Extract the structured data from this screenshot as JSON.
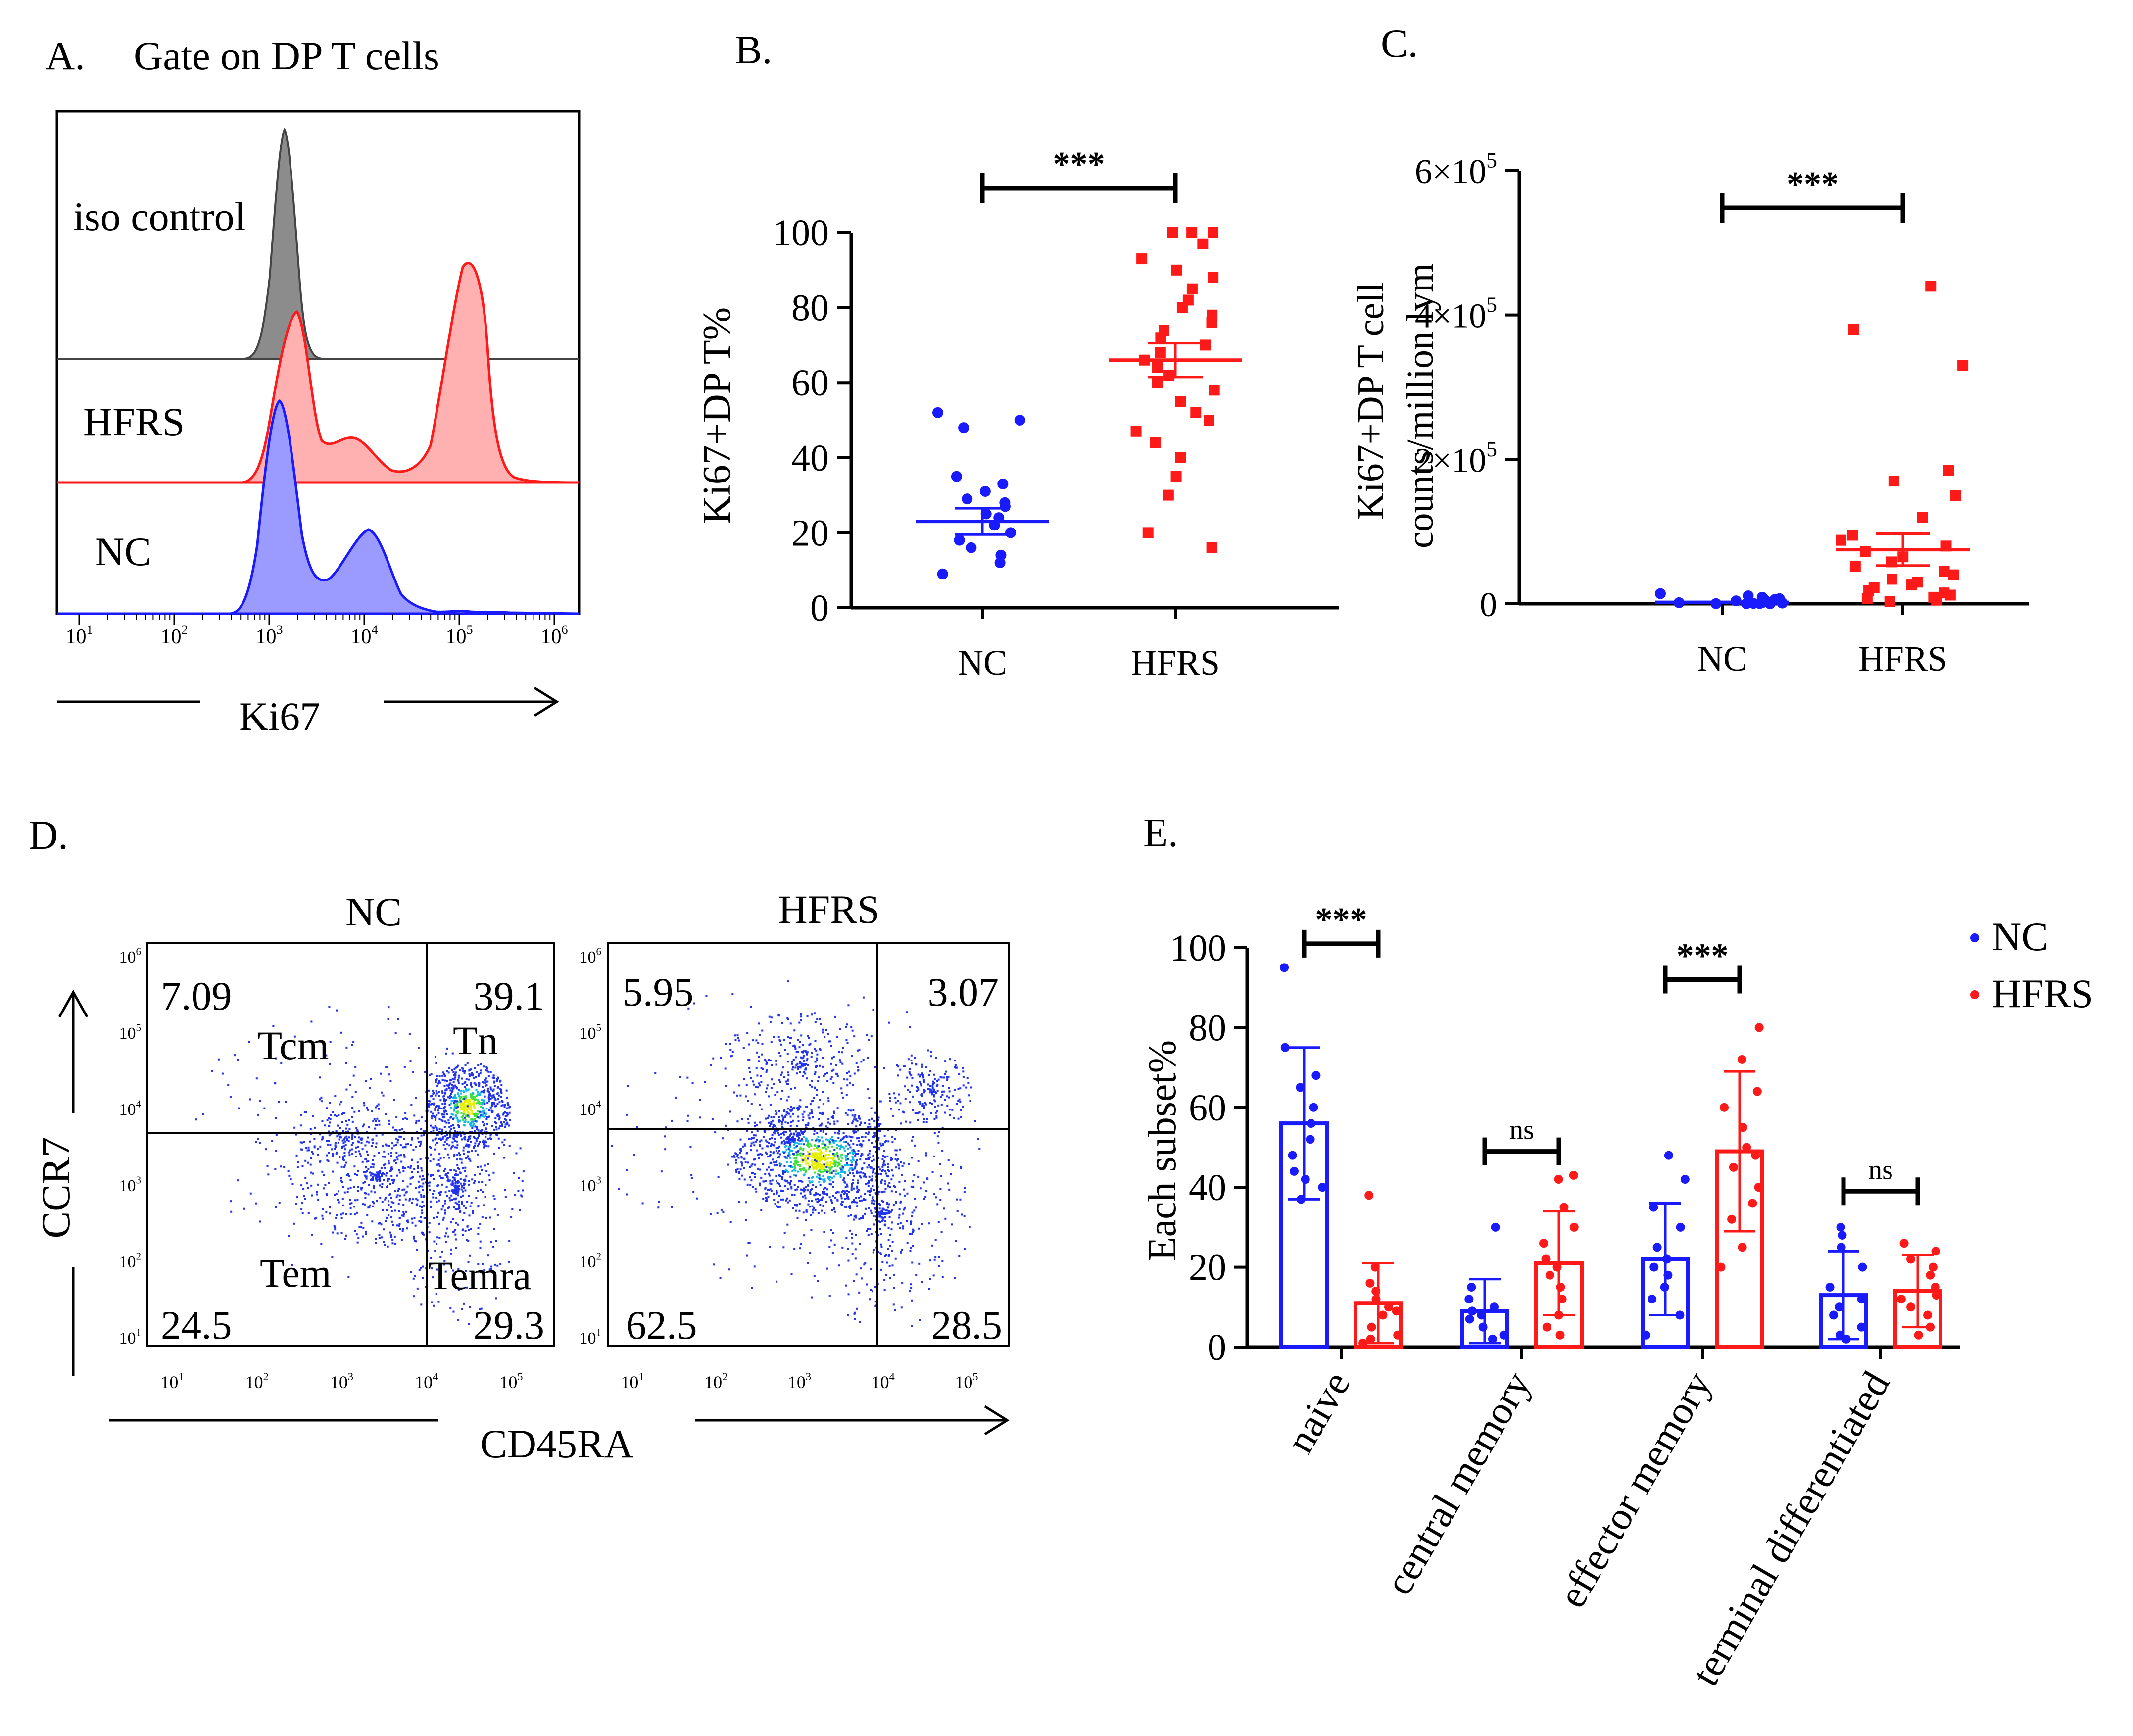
{
  "colors": {
    "nc": "#1a1aff",
    "hfrs": "#ff1a1a",
    "iso": "#555555",
    "axis": "#000000"
  },
  "chart_data": [
    {
      "panel": "A.",
      "type": "histogram",
      "title": "Gate on DP T cells",
      "xlabel": "Ki67",
      "x_ticks": [
        "10",
        "10",
        "10",
        "10",
        "10",
        "10"
      ],
      "x_tick_exponents": [
        "1",
        "2",
        "3",
        "4",
        "5",
        "6"
      ],
      "tracks": [
        "iso control",
        "HFRS",
        "NC"
      ],
      "track_peaks_log10": {
        "iso control": [
          3.4
        ],
        "HFRS": [
          3.5,
          4.1,
          5.4
        ],
        "NC": [
          3.3,
          4.3
        ]
      }
    },
    {
      "panel": "B.",
      "type": "scatter",
      "ylabel": "Ki67+DP T%",
      "ylim": [
        0,
        100
      ],
      "y_ticks": [
        "100",
        "80",
        "60",
        "40",
        "20",
        "0"
      ],
      "categories": [
        "NC",
        "HFRS"
      ],
      "significance": "***",
      "series": [
        {
          "name": "NC",
          "mean": 23,
          "sem": 3.5,
          "values": [
            52,
            50,
            48,
            35,
            33,
            31,
            29,
            28,
            27,
            25,
            24,
            22,
            20,
            18,
            16,
            14,
            12,
            9
          ]
        },
        {
          "name": "HFRS",
          "mean": 66,
          "sem": 4.5,
          "values": [
            100,
            100,
            100,
            97,
            93,
            90,
            88,
            85,
            82,
            80,
            78,
            76,
            74,
            72,
            70,
            68,
            66,
            64,
            62,
            60,
            58,
            55,
            52,
            50,
            47,
            44,
            40,
            35,
            30,
            20,
            16
          ]
        }
      ]
    },
    {
      "panel": "C.",
      "type": "scatter",
      "ylabel_line1": "Ki67+DP T cell",
      "ylabel_line2": "counts/million lym",
      "ylim": [
        0,
        600000
      ],
      "y_ticks": [
        "6×10",
        "4×10",
        "2×10",
        "0"
      ],
      "y_tick_exponents": [
        "5",
        "5",
        "5",
        ""
      ],
      "categories": [
        "NC",
        "HFRS"
      ],
      "significance": "***",
      "series": [
        {
          "name": "NC",
          "mean": 2000,
          "sem": 500,
          "values": [
            14000,
            11000,
            9000,
            7000,
            6000,
            5000,
            4000,
            3000,
            2000,
            1500,
            1000,
            500,
            300,
            200,
            100,
            50
          ]
        },
        {
          "name": "HFRS",
          "mean": 75000,
          "sem": 22000,
          "values": [
            440000,
            380000,
            330000,
            185000,
            170000,
            150000,
            120000,
            95000,
            88000,
            80000,
            72000,
            65000,
            58000,
            52000,
            45000,
            40000,
            34000,
            30000,
            26000,
            22000,
            18000,
            15000,
            12000,
            9000,
            7000,
            5000,
            3000
          ]
        }
      ]
    },
    {
      "panel": "D.",
      "type": "flow-dot-plot",
      "xlabel": "CD45RA",
      "ylabel": "CCR7",
      "tick_base": "10",
      "tick_exponents": [
        "1",
        "2",
        "3",
        "4",
        "5"
      ],
      "y_tick_exponents": [
        "1",
        "2",
        "3",
        "4",
        "5",
        "6"
      ],
      "plots": [
        {
          "title": "NC",
          "Q_tl": "7.09",
          "Q_tr": "39.1",
          "Q_bl": "24.5",
          "Q_br": "29.3",
          "labels": {
            "tl": "Tcm",
            "tr": "Tn",
            "bl": "Tem",
            "br": "Temra"
          }
        },
        {
          "title": "HFRS",
          "Q_tl": "5.95",
          "Q_tr": "3.07",
          "Q_bl": "62.5",
          "Q_br": "28.5"
        }
      ]
    },
    {
      "panel": "E.",
      "type": "bar",
      "ylabel": "Each subset%",
      "ylim": [
        0,
        100
      ],
      "y_ticks": [
        "100",
        "80",
        "60",
        "40",
        "20",
        "0"
      ],
      "categories": [
        "naive",
        "central memory",
        "effector memory",
        "terminal differentiated"
      ],
      "significance": [
        "***",
        "ns",
        "***",
        "ns"
      ],
      "legend": [
        "NC",
        "HFRS"
      ],
      "series": [
        {
          "name": "NC",
          "values": [
            56,
            9,
            22,
            13
          ],
          "sd": [
            19,
            8,
            14,
            11
          ],
          "points": [
            [
              95,
              75,
              68,
              65,
              60,
              56,
              52,
              48,
              44,
              42,
              40,
              37
            ],
            [
              30,
              15,
              12,
              10,
              9,
              8,
              7,
              5,
              3,
              2
            ],
            [
              48,
              42,
              35,
              30,
              25,
              22,
              20,
              18,
              15,
              12,
              8,
              3
            ],
            [
              30,
              28,
              25,
              20,
              15,
              12,
              10,
              8,
              5,
              3,
              2
            ]
          ]
        },
        {
          "name": "HFRS",
          "values": [
            11,
            21,
            49,
            14
          ],
          "sd": [
            10,
            13,
            20,
            9
          ],
          "points": [
            [
              38,
              20,
              16,
              14,
              12,
              10,
              9,
              8,
              5,
              3,
              2,
              1
            ],
            [
              43,
              42,
              35,
              30,
              26,
              22,
              20,
              18,
              15,
              12,
              8,
              5,
              3
            ],
            [
              80,
              72,
              64,
              60,
              55,
              50,
              48,
              45,
              40,
              36,
              32,
              25,
              20
            ],
            [
              26,
              24,
              22,
              20,
              18,
              15,
              13,
              12,
              10,
              8,
              5,
              3
            ]
          ]
        }
      ]
    }
  ]
}
